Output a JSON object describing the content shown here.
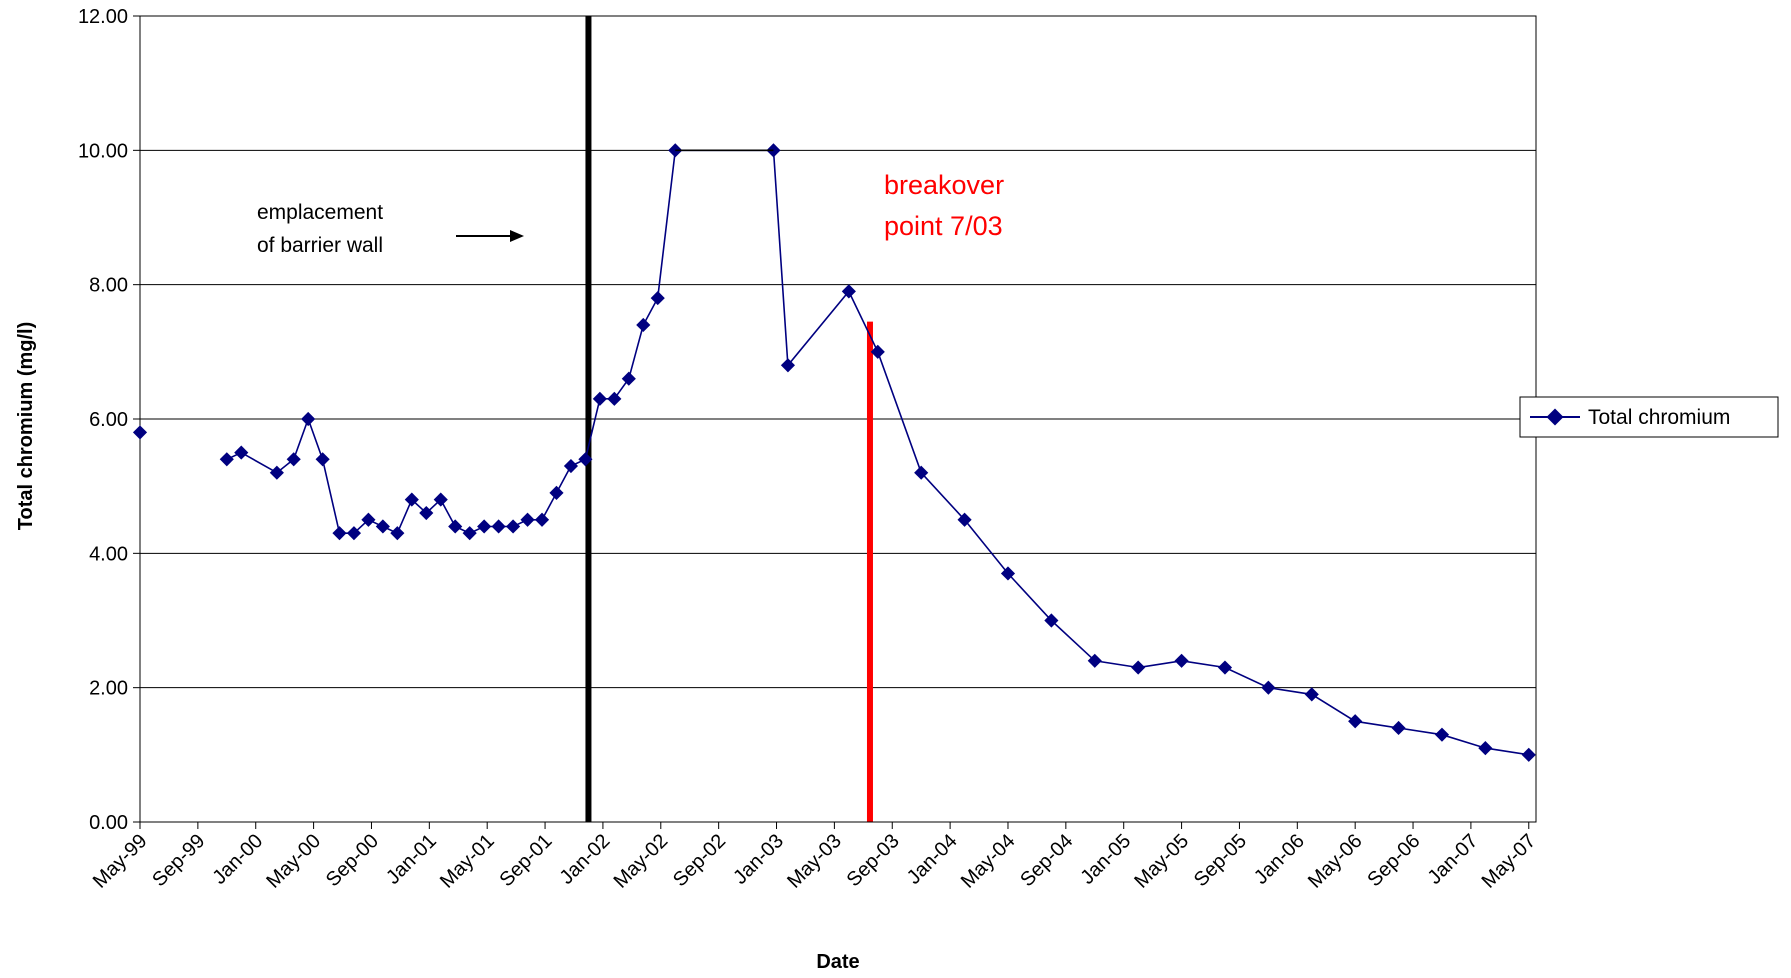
{
  "chart_data": {
    "type": "line",
    "xlabel": "Date",
    "ylabel": "Total chromium (mg/l)",
    "ylim": [
      0,
      12
    ],
    "y_ticks": [
      "0.00",
      "2.00",
      "4.00",
      "6.00",
      "8.00",
      "10.00",
      "12.00"
    ],
    "x_ticks": [
      "May-99",
      "Sep-99",
      "Jan-00",
      "May-00",
      "Sep-00",
      "Jan-01",
      "May-01",
      "Sep-01",
      "Jan-02",
      "May-02",
      "Sep-02",
      "Jan-03",
      "May-03",
      "Sep-03",
      "Jan-04",
      "May-04",
      "Sep-04",
      "Jan-05",
      "May-05",
      "Sep-05",
      "Jan-06",
      "May-06",
      "Sep-06",
      "Jan-07",
      "May-07"
    ],
    "grid": "horizontal",
    "legend_position": "right",
    "colors": {
      "series": "#000080",
      "black_line": "#000000",
      "red_line": "#ff0000",
      "gridline": "#000000",
      "annotation_red": "#ff0000"
    },
    "vertical_lines": [
      {
        "x": "2001-12-01",
        "color": "#000000"
      },
      {
        "x": "2003-07-15",
        "y_top": 7.45,
        "color": "#ff0000"
      }
    ],
    "annotations": [
      {
        "lines": [
          "emplacement",
          "of barrier wall"
        ],
        "color": "#000000"
      },
      {
        "lines": [
          "breakover",
          "point 7/03"
        ],
        "color": "#ff0000"
      }
    ],
    "series": [
      {
        "name": "Total chromium",
        "x": [
          "1999-05-01",
          "1999-08-20",
          "1999-11-01",
          "1999-12-01",
          "2000-02-15",
          "2000-03-20",
          "2000-04-20",
          "2000-05-20",
          "2000-06-25",
          "2000-07-25",
          "2000-08-25",
          "2000-09-25",
          "2000-10-25",
          "2000-11-25",
          "2000-12-25",
          "2001-01-25",
          "2001-02-25",
          "2001-03-25",
          "2001-04-25",
          "2001-05-25",
          "2001-06-25",
          "2001-07-25",
          "2001-08-25",
          "2001-09-25",
          "2001-10-25",
          "2001-11-25",
          "2001-12-25",
          "2002-01-25",
          "2002-02-25",
          "2002-03-25",
          "2002-04-25",
          "2002-06-01",
          "2002-12-25",
          "2003-01-25",
          "2003-06-01",
          "2003-08-01",
          "2003-11-01",
          "2004-02-01",
          "2004-05-01",
          "2004-08-01",
          "2004-11-01",
          "2005-02-01",
          "2005-05-01",
          "2005-08-01",
          "2005-11-01",
          "2006-02-01",
          "2006-05-01",
          "2006-08-01",
          "2006-11-01",
          "2007-02-01",
          "2007-05-01"
        ],
        "y": [
          5.8,
          null,
          5.4,
          5.5,
          5.2,
          5.4,
          6.0,
          5.4,
          4.3,
          4.3,
          4.5,
          4.4,
          4.3,
          4.8,
          4.6,
          4.8,
          4.4,
          4.3,
          4.4,
          4.4,
          4.4,
          4.5,
          4.5,
          4.9,
          5.3,
          5.4,
          6.3,
          6.3,
          6.6,
          7.4,
          7.8,
          10.0,
          10.0,
          6.8,
          7.9,
          7.0,
          5.2,
          4.5,
          3.7,
          3.0,
          2.4,
          2.3,
          2.4,
          2.3,
          2.0,
          1.9,
          1.5,
          1.4,
          1.3,
          1.1,
          1.0
        ]
      }
    ]
  }
}
